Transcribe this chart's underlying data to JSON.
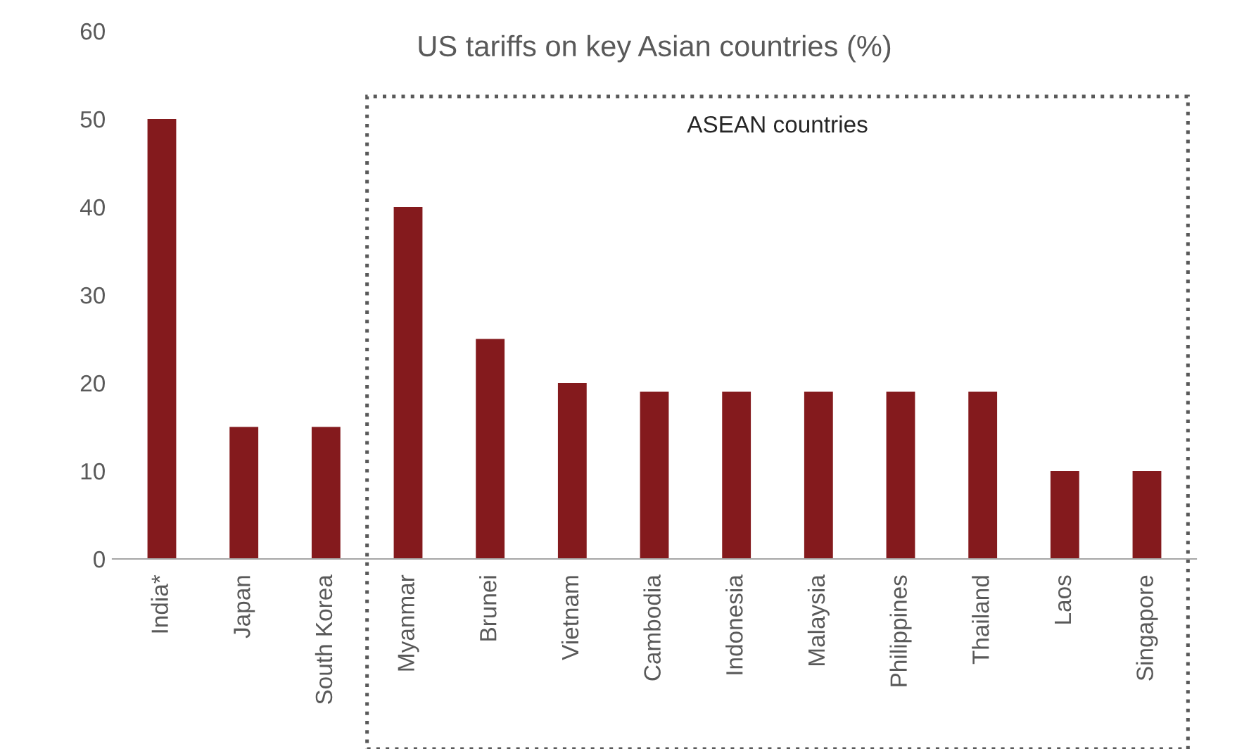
{
  "chart_data": {
    "type": "bar",
    "title": "US tariffs on key Asian countries (%)",
    "categories": [
      "India*",
      "Japan",
      "South Korea",
      "Myanmar",
      "Brunei",
      "Vietnam",
      "Cambodia",
      "Indonesia",
      "Malaysia",
      "Philippines",
      "Thailand",
      "Laos",
      "Singapore"
    ],
    "values": [
      50,
      15,
      15,
      40,
      25,
      20,
      19,
      19,
      19,
      19,
      19,
      10,
      10
    ],
    "color": "#841a1d",
    "ylim": [
      0,
      60
    ],
    "yticks": [
      0,
      10,
      20,
      30,
      40,
      50,
      60
    ],
    "grid": false,
    "annotations": [
      "ASEAN countries"
    ]
  }
}
